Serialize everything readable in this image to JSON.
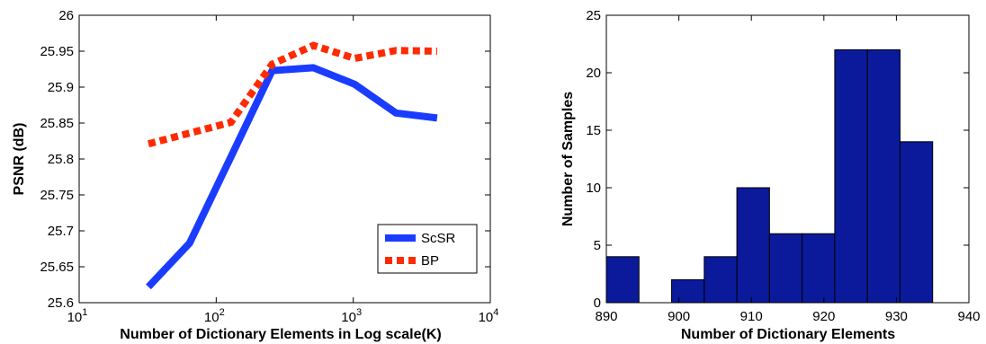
{
  "chart_data": [
    {
      "type": "line",
      "title": "",
      "xlabel": "Number of Dictionary Elements  in Log scale(K)",
      "ylabel": "PSNR (dB)",
      "xscale": "log",
      "xlim": [
        10,
        10000
      ],
      "ylim": [
        25.6,
        26.0
      ],
      "x_ticks": [
        {
          "value": 10,
          "base": "10",
          "exp": "1"
        },
        {
          "value": 100,
          "base": "10",
          "exp": "2"
        },
        {
          "value": 1000,
          "base": "10",
          "exp": "3"
        },
        {
          "value": 10000,
          "base": "10",
          "exp": "4"
        }
      ],
      "y_ticks": [
        {
          "value": 25.6,
          "label": "25.6"
        },
        {
          "value": 25.65,
          "label": "25.65"
        },
        {
          "value": 25.7,
          "label": "25.7"
        },
        {
          "value": 25.75,
          "label": "25.75"
        },
        {
          "value": 25.8,
          "label": "25.8"
        },
        {
          "value": 25.85,
          "label": "25.85"
        },
        {
          "value": 25.9,
          "label": "25.9"
        },
        {
          "value": 25.95,
          "label": "25.95"
        },
        {
          "value": 26.0,
          "label": "26"
        }
      ],
      "x": [
        32,
        64,
        128,
        256,
        512,
        1024,
        2048,
        4096
      ],
      "series": [
        {
          "name": "ScSR",
          "color": "#1a3cff",
          "style": "solid",
          "values": [
            25.622,
            25.683,
            25.803,
            25.923,
            25.927,
            25.904,
            25.864,
            25.857
          ]
        },
        {
          "name": "BP",
          "color": "#ff2a00",
          "style": "dashed",
          "values": [
            25.821,
            25.836,
            25.851,
            25.932,
            25.958,
            25.94,
            25.951,
            25.95
          ]
        }
      ],
      "legend": {
        "placement": "bottom-right"
      },
      "grid": false
    },
    {
      "type": "bar",
      "subtype": "histogram",
      "title": "",
      "xlabel": "Number of Dictionary Elements",
      "ylabel": "Number of Samples",
      "xlim": [
        890,
        940
      ],
      "ylim": [
        0,
        25
      ],
      "bar_color": "#0a1a9a",
      "bin_edges": [
        890,
        894.5,
        899,
        903.5,
        908,
        912.5,
        917,
        921.5,
        926,
        930.5,
        935
      ],
      "values": [
        4,
        0,
        2,
        4,
        10,
        6,
        6,
        22,
        22,
        14
      ],
      "x_ticks": [
        {
          "value": 890,
          "label": "890"
        },
        {
          "value": 900,
          "label": "900"
        },
        {
          "value": 910,
          "label": "910"
        },
        {
          "value": 920,
          "label": "920"
        },
        {
          "value": 930,
          "label": "930"
        },
        {
          "value": 940,
          "label": "940"
        }
      ],
      "y_ticks": [
        {
          "value": 0,
          "label": "0"
        },
        {
          "value": 5,
          "label": "5"
        },
        {
          "value": 10,
          "label": "10"
        },
        {
          "value": 15,
          "label": "15"
        },
        {
          "value": 20,
          "label": "20"
        },
        {
          "value": 25,
          "label": "25"
        }
      ],
      "grid": false
    }
  ]
}
